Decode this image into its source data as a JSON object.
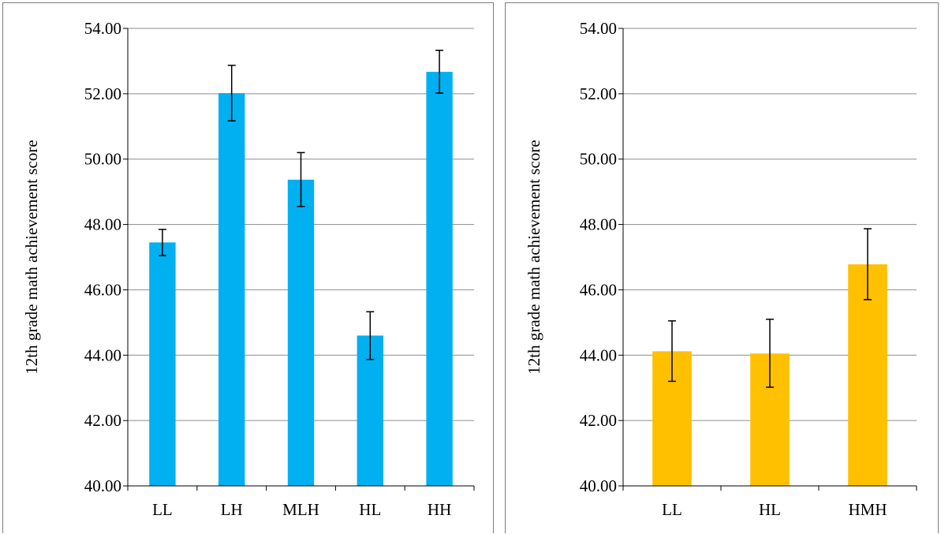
{
  "chart_data": [
    {
      "type": "bar",
      "title": "",
      "xlabel": "",
      "ylabel": "12th grade math achievement score",
      "ylim": [
        40,
        54
      ],
      "yticks": [
        "40.00",
        "42.00",
        "44.00",
        "46.00",
        "48.00",
        "50.00",
        "52.00",
        "54.00"
      ],
      "grid": true,
      "legend": "none",
      "categories": [
        "LL",
        "LH",
        "MLH",
        "HL",
        "HH"
      ],
      "series": [
        {
          "color": "#00b0f0",
          "values": [
            47.45,
            52.02,
            49.37,
            44.6,
            52.67
          ],
          "error_low": [
            47.05,
            51.17,
            48.55,
            43.87,
            52.02
          ],
          "error_high": [
            47.85,
            52.87,
            50.2,
            45.33,
            53.33
          ]
        }
      ]
    },
    {
      "type": "bar",
      "title": "",
      "xlabel": "",
      "ylabel": "12th grade math achievement score",
      "ylim": [
        40,
        54
      ],
      "yticks": [
        "40.00",
        "42.00",
        "44.00",
        "46.00",
        "48.00",
        "50.00",
        "52.00",
        "54.00"
      ],
      "grid": true,
      "legend": "none",
      "categories": [
        "LL",
        "HL",
        "HMH"
      ],
      "series": [
        {
          "color": "#ffc000",
          "values": [
            44.12,
            44.05,
            46.78
          ],
          "error_low": [
            43.2,
            43.02,
            45.7
          ],
          "error_high": [
            45.05,
            45.1,
            47.87
          ]
        }
      ]
    }
  ]
}
